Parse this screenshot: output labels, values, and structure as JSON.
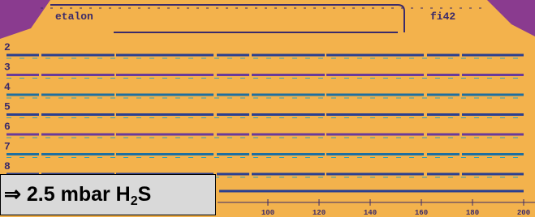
{
  "header": {
    "left": "etalon",
    "right": "fi42"
  },
  "rows": [
    "2",
    "3",
    "4",
    "5",
    "6",
    "7",
    "8"
  ],
  "label": {
    "prefix": "⇒ 2.5 mbar H",
    "subscript": "2",
    "suffix": "S"
  },
  "axis_labels": [
    "100",
    "120",
    "140",
    "160",
    "180",
    "200"
  ]
}
